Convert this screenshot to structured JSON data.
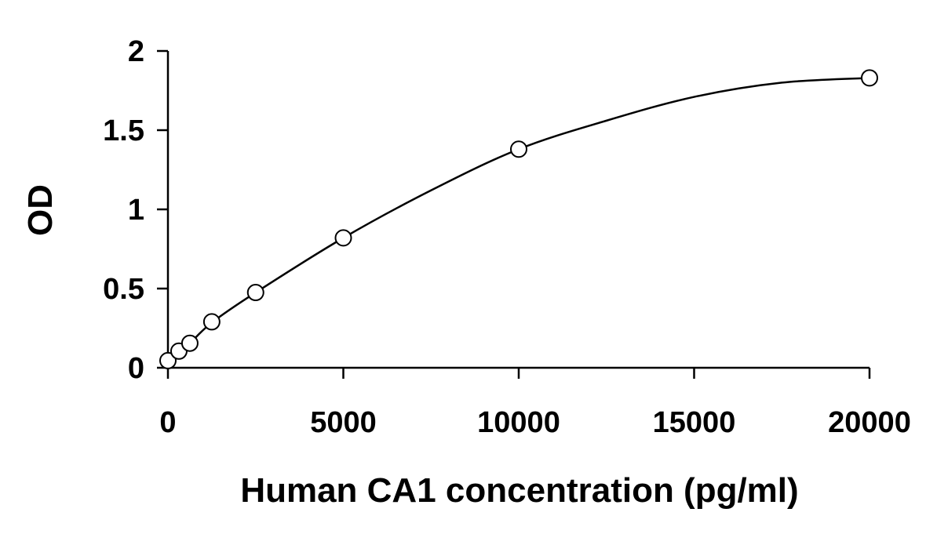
{
  "chart_data": {
    "type": "scatter",
    "title": "",
    "xlabel": "Human CA1 concentration (pg/ml)",
    "ylabel": "OD",
    "xlim": [
      0,
      20000
    ],
    "ylim": [
      0,
      2
    ],
    "x_ticks": [
      0,
      5000,
      10000,
      15000,
      20000
    ],
    "x_tick_labels": [
      "0",
      "5000",
      "10000",
      "15000",
      "20000"
    ],
    "y_ticks": [
      0,
      0.5,
      1,
      1.5,
      2
    ],
    "y_tick_labels": [
      "0",
      "0.5",
      "1",
      "1.5",
      "2"
    ],
    "grid": false,
    "legend": "none",
    "series": [
      {
        "marker": "open-circle",
        "color": "#000000",
        "x": [
          0,
          312.5,
          625,
          1250,
          2500,
          5000,
          10000,
          20000
        ],
        "y": [
          0.045,
          0.105,
          0.155,
          0.29,
          0.475,
          0.82,
          1.38,
          1.83
        ]
      }
    ],
    "fit_curve": {
      "color": "#000000",
      "x": [
        0,
        312.5,
        625,
        1250,
        2500,
        5000,
        7500,
        10000,
        12500,
        15000,
        17500,
        20000
      ],
      "y": [
        0.045,
        0.105,
        0.155,
        0.285,
        0.475,
        0.82,
        1.12,
        1.38,
        1.56,
        1.71,
        1.8,
        1.83
      ]
    }
  }
}
